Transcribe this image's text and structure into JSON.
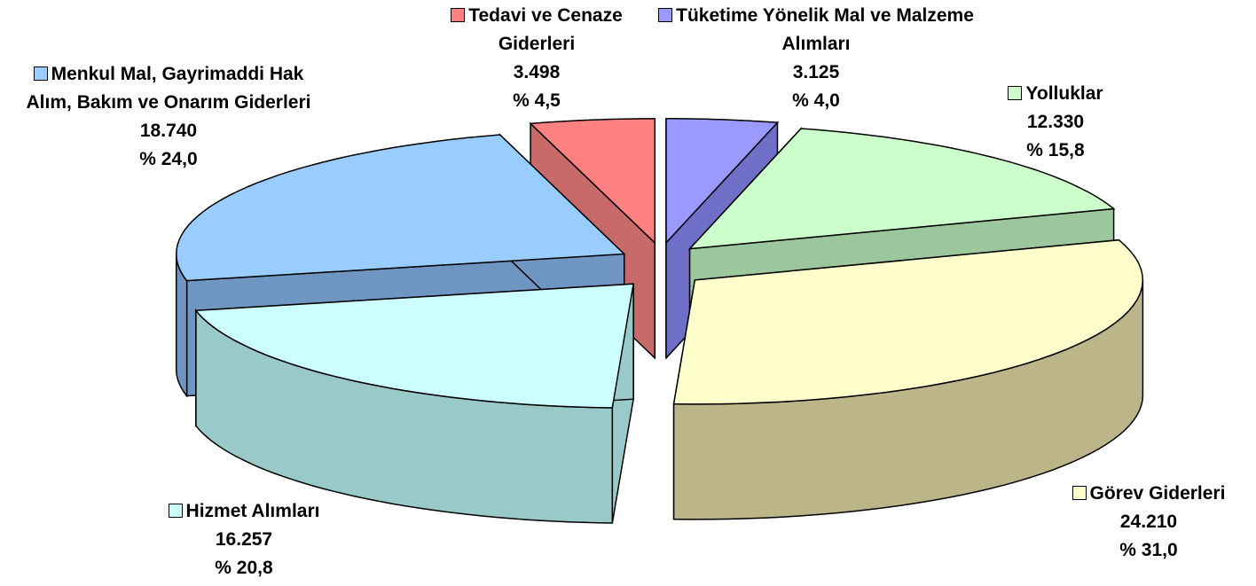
{
  "chart_data": {
    "type": "pie",
    "categories": [
      "Tüketime Yönelik Mal ve Malzeme Alımları",
      "Yolluklar",
      "Görev Giderleri",
      "Hizmet Alımları",
      "Menkul Mal, Gayrimaddi Hak Alım, Bakım ve Onarım Giderleri",
      "Tedavi ve Cenaze Giderleri"
    ],
    "values": [
      3125,
      12330,
      24210,
      16257,
      18740,
      3498
    ],
    "value_labels": [
      "3.125",
      "12.330",
      "24.210",
      "16.257",
      "18.740",
      "3.498"
    ],
    "percents": [
      4.0,
      15.8,
      31.0,
      20.8,
      24.0,
      4.5
    ],
    "percent_labels": [
      "% 4,0",
      "% 15,8",
      "% 31,0",
      "% 20,8",
      "% 24,0",
      "% 4,5"
    ],
    "colors": [
      "#9999ff",
      "#ccffcc",
      "#ffffcc",
      "#ccffff",
      "#99ccff",
      "#ff8080"
    ],
    "side_colors": [
      "#6f6fc8",
      "#9cc79c",
      "#bdb58a",
      "#99c9c9",
      "#6f95c2",
      "#c86a6a"
    ]
  }
}
